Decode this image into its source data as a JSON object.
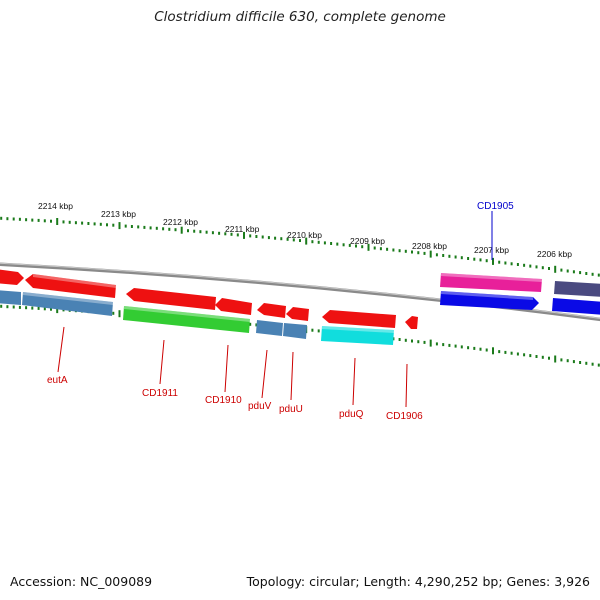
{
  "title": "Clostridium difficile 630, complete genome",
  "accession": "Accession: NC_009089",
  "stats": "Topology: circular; Length: 4,290,252 bp; Genes: 3,926",
  "scale_labels": [
    "2214 kbp",
    "2213 kbp",
    "2212 kbp",
    "2211 kbp",
    "2210 kbp",
    "2209 kbp",
    "2208 kbp",
    "2207 kbp",
    "2206 kbp"
  ],
  "gene_labels": [
    "eutA",
    "CD1911",
    "CD1910",
    "pduV",
    "pduU",
    "pduQ",
    "CD1906"
  ],
  "top_gene_label": "CD1905",
  "colors": {
    "label_red": "#cc0000",
    "label_blue": "#0000cc",
    "tick_green": "#1a7a1a",
    "backbone": "#8a8a8a",
    "red": "#ee1111",
    "steelblue": "#4a82b4",
    "green": "#33cc33",
    "cyan": "#11dddd",
    "magenta": "#e8209a",
    "blue": "#0a0ae6",
    "slate": "#4a4a80"
  }
}
